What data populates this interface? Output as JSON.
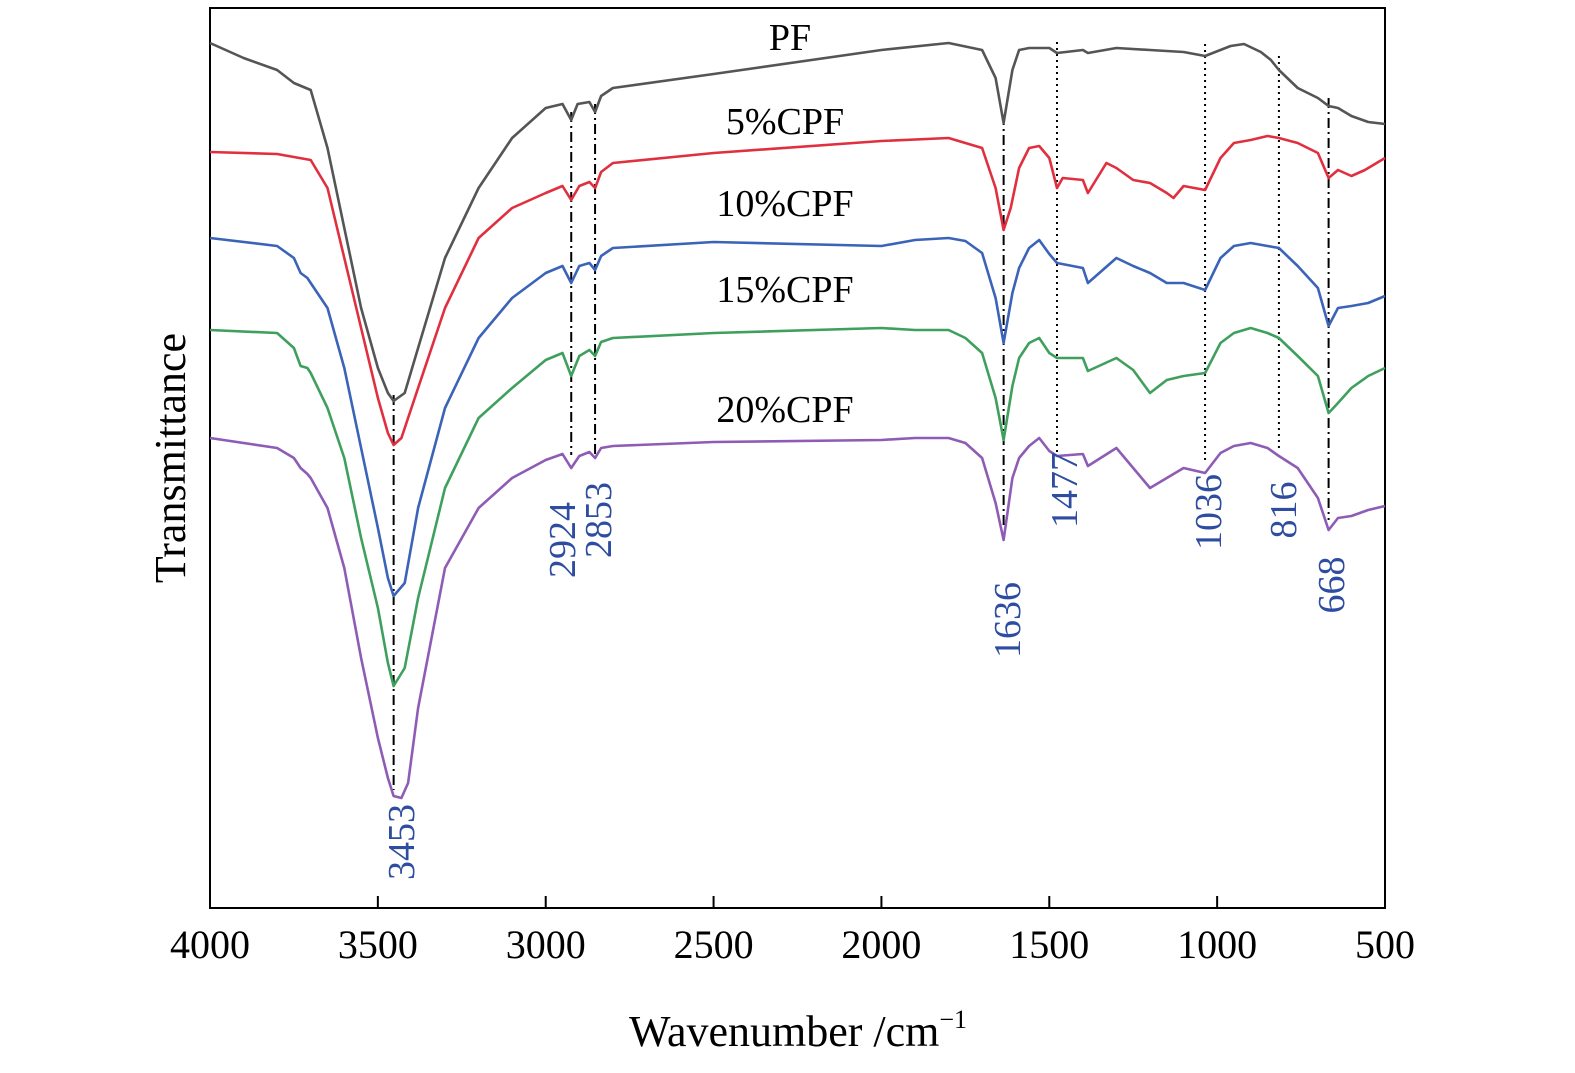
{
  "chart_data": {
    "type": "line",
    "xlabel": "Wavenumber /cm",
    "xlabel_superscript": "−1",
    "ylabel": "Transmittance",
    "xlim": [
      4000,
      500
    ],
    "x_reversed": true,
    "y_ticks_shown": false,
    "grid": false,
    "legend": "none (series labelled inline above each curve)",
    "x_ticks": [
      "4000",
      "3500",
      "3000",
      "2500",
      "2000",
      "1500",
      "1000",
      "500"
    ],
    "peak_color": "#2e4da0",
    "peaks": [
      {
        "label": "3453",
        "value": 3453
      },
      {
        "label": "2924",
        "value": 2924
      },
      {
        "label": "2853",
        "value": 2853
      },
      {
        "label": "1636",
        "value": 1636
      },
      {
        "label": "1477",
        "value": 1477
      },
      {
        "label": "1036",
        "value": 1036
      },
      {
        "label": "816",
        "value": 816
      },
      {
        "label": "668",
        "value": 668
      }
    ],
    "series": [
      {
        "name": "PF",
        "color": "#555555",
        "points": [
          [
            4000,
            35
          ],
          [
            3900,
            50
          ],
          [
            3800,
            62
          ],
          [
            3750,
            75
          ],
          [
            3700,
            82
          ],
          [
            3650,
            140
          ],
          [
            3600,
            220
          ],
          [
            3550,
            300
          ],
          [
            3500,
            360
          ],
          [
            3470,
            385
          ],
          [
            3453,
            393
          ],
          [
            3420,
            385
          ],
          [
            3380,
            340
          ],
          [
            3300,
            250
          ],
          [
            3200,
            180
          ],
          [
            3100,
            130
          ],
          [
            3000,
            100
          ],
          [
            2950,
            96
          ],
          [
            2924,
            112
          ],
          [
            2905,
            96
          ],
          [
            2870,
            94
          ],
          [
            2853,
            104
          ],
          [
            2835,
            88
          ],
          [
            2800,
            80
          ],
          [
            2500,
            66
          ],
          [
            2000,
            42
          ],
          [
            1800,
            35
          ],
          [
            1700,
            42
          ],
          [
            1660,
            70
          ],
          [
            1636,
            115
          ],
          [
            1610,
            62
          ],
          [
            1590,
            42
          ],
          [
            1560,
            40
          ],
          [
            1500,
            40
          ],
          [
            1477,
            45
          ],
          [
            1400,
            42
          ],
          [
            1385,
            45
          ],
          [
            1300,
            40
          ],
          [
            1200,
            42
          ],
          [
            1100,
            44
          ],
          [
            1036,
            48
          ],
          [
            960,
            38
          ],
          [
            920,
            36
          ],
          [
            870,
            44
          ],
          [
            840,
            52
          ],
          [
            816,
            62
          ],
          [
            760,
            80
          ],
          [
            700,
            90
          ],
          [
            668,
            98
          ],
          [
            640,
            100
          ],
          [
            600,
            108
          ],
          [
            550,
            114
          ],
          [
            500,
            116
          ]
        ]
      },
      {
        "name": "5%CPF",
        "color": "#e0303f",
        "points": [
          [
            4000,
            144
          ],
          [
            3800,
            146
          ],
          [
            3700,
            152
          ],
          [
            3650,
            180
          ],
          [
            3600,
            250
          ],
          [
            3550,
            320
          ],
          [
            3500,
            390
          ],
          [
            3470,
            425
          ],
          [
            3453,
            437
          ],
          [
            3430,
            430
          ],
          [
            3380,
            380
          ],
          [
            3300,
            300
          ],
          [
            3200,
            230
          ],
          [
            3100,
            200
          ],
          [
            3000,
            185
          ],
          [
            2950,
            178
          ],
          [
            2924,
            192
          ],
          [
            2900,
            178
          ],
          [
            2870,
            174
          ],
          [
            2853,
            180
          ],
          [
            2835,
            164
          ],
          [
            2800,
            155
          ],
          [
            2500,
            145
          ],
          [
            2000,
            133
          ],
          [
            1800,
            130
          ],
          [
            1700,
            140
          ],
          [
            1660,
            180
          ],
          [
            1636,
            222
          ],
          [
            1615,
            200
          ],
          [
            1590,
            160
          ],
          [
            1560,
            140
          ],
          [
            1530,
            138
          ],
          [
            1500,
            150
          ],
          [
            1477,
            180
          ],
          [
            1460,
            170
          ],
          [
            1400,
            172
          ],
          [
            1385,
            185
          ],
          [
            1330,
            155
          ],
          [
            1300,
            160
          ],
          [
            1250,
            172
          ],
          [
            1200,
            175
          ],
          [
            1150,
            185
          ],
          [
            1130,
            190
          ],
          [
            1100,
            178
          ],
          [
            1036,
            182
          ],
          [
            990,
            150
          ],
          [
            950,
            135
          ],
          [
            900,
            132
          ],
          [
            850,
            128
          ],
          [
            816,
            130
          ],
          [
            760,
            135
          ],
          [
            700,
            145
          ],
          [
            668,
            170
          ],
          [
            640,
            162
          ],
          [
            600,
            168
          ],
          [
            560,
            162
          ],
          [
            500,
            150
          ]
        ]
      },
      {
        "name": "10%CPF",
        "color": "#3b63b8",
        "points": [
          [
            4000,
            230
          ],
          [
            3800,
            238
          ],
          [
            3750,
            250
          ],
          [
            3730,
            265
          ],
          [
            3710,
            270
          ],
          [
            3700,
            275
          ],
          [
            3650,
            300
          ],
          [
            3600,
            360
          ],
          [
            3550,
            440
          ],
          [
            3500,
            520
          ],
          [
            3470,
            570
          ],
          [
            3453,
            588
          ],
          [
            3420,
            575
          ],
          [
            3380,
            500
          ],
          [
            3300,
            400
          ],
          [
            3200,
            330
          ],
          [
            3100,
            290
          ],
          [
            3000,
            265
          ],
          [
            2950,
            258
          ],
          [
            2924,
            275
          ],
          [
            2900,
            258
          ],
          [
            2870,
            255
          ],
          [
            2853,
            262
          ],
          [
            2835,
            248
          ],
          [
            2800,
            240
          ],
          [
            2500,
            234
          ],
          [
            2000,
            238
          ],
          [
            1900,
            232
          ],
          [
            1800,
            230
          ],
          [
            1750,
            233
          ],
          [
            1700,
            245
          ],
          [
            1660,
            290
          ],
          [
            1636,
            335
          ],
          [
            1610,
            285
          ],
          [
            1590,
            260
          ],
          [
            1560,
            240
          ],
          [
            1530,
            232
          ],
          [
            1500,
            246
          ],
          [
            1477,
            255
          ],
          [
            1400,
            260
          ],
          [
            1385,
            275
          ],
          [
            1300,
            250
          ],
          [
            1250,
            258
          ],
          [
            1200,
            265
          ],
          [
            1150,
            275
          ],
          [
            1100,
            275
          ],
          [
            1036,
            282
          ],
          [
            990,
            250
          ],
          [
            950,
            238
          ],
          [
            900,
            235
          ],
          [
            850,
            238
          ],
          [
            816,
            240
          ],
          [
            760,
            258
          ],
          [
            700,
            280
          ],
          [
            668,
            318
          ],
          [
            640,
            300
          ],
          [
            600,
            298
          ],
          [
            550,
            295
          ],
          [
            500,
            288
          ]
        ]
      },
      {
        "name": "15%CPF",
        "color": "#3fa05e",
        "points": [
          [
            4000,
            322
          ],
          [
            3800,
            325
          ],
          [
            3750,
            340
          ],
          [
            3730,
            358
          ],
          [
            3710,
            360
          ],
          [
            3700,
            365
          ],
          [
            3650,
            400
          ],
          [
            3600,
            450
          ],
          [
            3550,
            530
          ],
          [
            3500,
            600
          ],
          [
            3470,
            655
          ],
          [
            3453,
            678
          ],
          [
            3420,
            660
          ],
          [
            3380,
            590
          ],
          [
            3300,
            480
          ],
          [
            3200,
            410
          ],
          [
            3100,
            380
          ],
          [
            3000,
            352
          ],
          [
            2950,
            345
          ],
          [
            2924,
            368
          ],
          [
            2900,
            348
          ],
          [
            2870,
            342
          ],
          [
            2853,
            348
          ],
          [
            2835,
            334
          ],
          [
            2800,
            330
          ],
          [
            2500,
            325
          ],
          [
            2000,
            320
          ],
          [
            1900,
            322
          ],
          [
            1800,
            322
          ],
          [
            1750,
            330
          ],
          [
            1700,
            345
          ],
          [
            1660,
            390
          ],
          [
            1636,
            432
          ],
          [
            1610,
            378
          ],
          [
            1590,
            350
          ],
          [
            1560,
            335
          ],
          [
            1530,
            330
          ],
          [
            1500,
            345
          ],
          [
            1477,
            350
          ],
          [
            1400,
            350
          ],
          [
            1385,
            363
          ],
          [
            1300,
            350
          ],
          [
            1250,
            362
          ],
          [
            1200,
            385
          ],
          [
            1150,
            372
          ],
          [
            1100,
            368
          ],
          [
            1036,
            365
          ],
          [
            990,
            335
          ],
          [
            950,
            325
          ],
          [
            900,
            320
          ],
          [
            850,
            325
          ],
          [
            816,
            330
          ],
          [
            760,
            348
          ],
          [
            700,
            368
          ],
          [
            668,
            405
          ],
          [
            640,
            395
          ],
          [
            600,
            380
          ],
          [
            550,
            368
          ],
          [
            500,
            360
          ]
        ]
      },
      {
        "name": "20%CPF",
        "color": "#8e5cb5",
        "points": [
          [
            4000,
            430
          ],
          [
            3800,
            440
          ],
          [
            3750,
            450
          ],
          [
            3730,
            460
          ],
          [
            3710,
            466
          ],
          [
            3700,
            470
          ],
          [
            3650,
            500
          ],
          [
            3600,
            560
          ],
          [
            3550,
            650
          ],
          [
            3500,
            730
          ],
          [
            3470,
            770
          ],
          [
            3453,
            788
          ],
          [
            3430,
            790
          ],
          [
            3410,
            775
          ],
          [
            3380,
            700
          ],
          [
            3300,
            560
          ],
          [
            3200,
            500
          ],
          [
            3100,
            470
          ],
          [
            3000,
            452
          ],
          [
            2950,
            446
          ],
          [
            2924,
            460
          ],
          [
            2900,
            448
          ],
          [
            2870,
            444
          ],
          [
            2853,
            450
          ],
          [
            2835,
            440
          ],
          [
            2800,
            438
          ],
          [
            2500,
            434
          ],
          [
            2000,
            432
          ],
          [
            1900,
            430
          ],
          [
            1800,
            430
          ],
          [
            1750,
            435
          ],
          [
            1700,
            450
          ],
          [
            1660,
            495
          ],
          [
            1636,
            532
          ],
          [
            1610,
            470
          ],
          [
            1590,
            450
          ],
          [
            1560,
            438
          ],
          [
            1530,
            430
          ],
          [
            1500,
            443
          ],
          [
            1477,
            448
          ],
          [
            1400,
            446
          ],
          [
            1385,
            458
          ],
          [
            1300,
            440
          ],
          [
            1250,
            460
          ],
          [
            1200,
            480
          ],
          [
            1150,
            470
          ],
          [
            1100,
            460
          ],
          [
            1036,
            465
          ],
          [
            990,
            445
          ],
          [
            950,
            438
          ],
          [
            900,
            435
          ],
          [
            850,
            440
          ],
          [
            816,
            448
          ],
          [
            760,
            460
          ],
          [
            700,
            490
          ],
          [
            668,
            522
          ],
          [
            640,
            510
          ],
          [
            600,
            508
          ],
          [
            550,
            502
          ],
          [
            500,
            498
          ]
        ]
      }
    ]
  }
}
